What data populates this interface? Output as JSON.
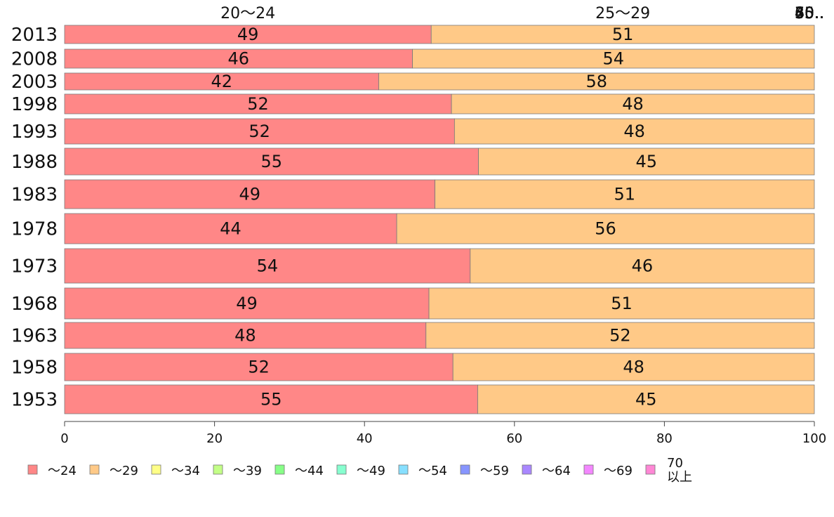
{
  "chart_data": {
    "type": "bar",
    "orientation": "horizontal",
    "stacked": "percent",
    "categories": [
      "2013",
      "2008",
      "2003",
      "1998",
      "1993",
      "1988",
      "1983",
      "1978",
      "1973",
      "1968",
      "1963",
      "1958",
      "1953"
    ],
    "series": [
      {
        "name": "～24",
        "color": "#ff8787",
        "values": [
          48.9,
          46.4,
          41.9,
          51.6,
          52.0,
          55.2,
          49.4,
          44.3,
          54.1,
          48.6,
          48.2,
          51.8,
          55.1
        ]
      },
      {
        "name": "～29",
        "color": "#ffc987",
        "values": [
          51.1,
          53.6,
          58.1,
          48.4,
          48.0,
          44.8,
          50.6,
          55.7,
          45.9,
          51.4,
          51.8,
          48.2,
          44.9
        ]
      },
      {
        "name": "～34",
        "color": "#ffff87",
        "values": [
          0,
          0,
          0,
          0,
          0,
          0,
          0,
          0,
          0,
          0,
          0,
          0,
          0
        ]
      },
      {
        "name": "～39",
        "color": "#c3ff87",
        "values": [
          0,
          0,
          0,
          0,
          0,
          0,
          0,
          0,
          0,
          0,
          0,
          0,
          0
        ]
      },
      {
        "name": "～44",
        "color": "#87ff87",
        "values": [
          0,
          0,
          0,
          0,
          0,
          0,
          0,
          0,
          0,
          0,
          0,
          0,
          0
        ]
      },
      {
        "name": "～49",
        "color": "#87ffcf",
        "values": [
          0,
          0,
          0,
          0,
          0,
          0,
          0,
          0,
          0,
          0,
          0,
          0,
          0
        ]
      },
      {
        "name": "～54",
        "color": "#87dfff",
        "values": [
          0,
          0,
          0,
          0,
          0,
          0,
          0,
          0,
          0,
          0,
          0,
          0,
          0
        ]
      },
      {
        "name": "～59",
        "color": "#8795ff",
        "values": [
          0,
          0,
          0,
          0,
          0,
          0,
          0,
          0,
          0,
          0,
          0,
          0,
          0
        ]
      },
      {
        "name": "～64",
        "color": "#a987ff",
        "values": [
          0,
          0,
          0,
          0,
          0,
          0,
          0,
          0,
          0,
          0,
          0,
          0,
          0
        ]
      },
      {
        "name": "～69",
        "color": "#f387ff",
        "values": [
          0,
          0,
          0,
          0,
          0,
          0,
          0,
          0,
          0,
          0,
          0,
          0,
          0
        ]
      },
      {
        "name": "70\n以上",
        "color": "#ff87d5",
        "values": [
          0,
          0,
          0,
          0,
          0,
          0,
          0,
          0,
          0,
          0,
          0,
          0,
          0
        ]
      }
    ],
    "data_labels": [
      [
        "49",
        "51"
      ],
      [
        "46",
        "54"
      ],
      [
        "42",
        "58"
      ],
      [
        "52",
        "48"
      ],
      [
        "52",
        "48"
      ],
      [
        "55",
        "45"
      ],
      [
        "49",
        "51"
      ],
      [
        "44",
        "56"
      ],
      [
        "54",
        "46"
      ],
      [
        "49",
        "51"
      ],
      [
        "48",
        "52"
      ],
      [
        "52",
        "48"
      ],
      [
        "55",
        "45"
      ]
    ],
    "top_labels": [
      "20～24",
      "25～29",
      "30..",
      "35..",
      "40..",
      "45..",
      "50..",
      "55..",
      "60..",
      "65..",
      "70.."
    ],
    "xlim": [
      0,
      100
    ],
    "x_ticks": [
      "0",
      "20",
      "40",
      "60",
      "80",
      "100"
    ],
    "title": "",
    "xlabel": "",
    "ylabel": "",
    "legend_position": "bottom",
    "grid": false
  }
}
